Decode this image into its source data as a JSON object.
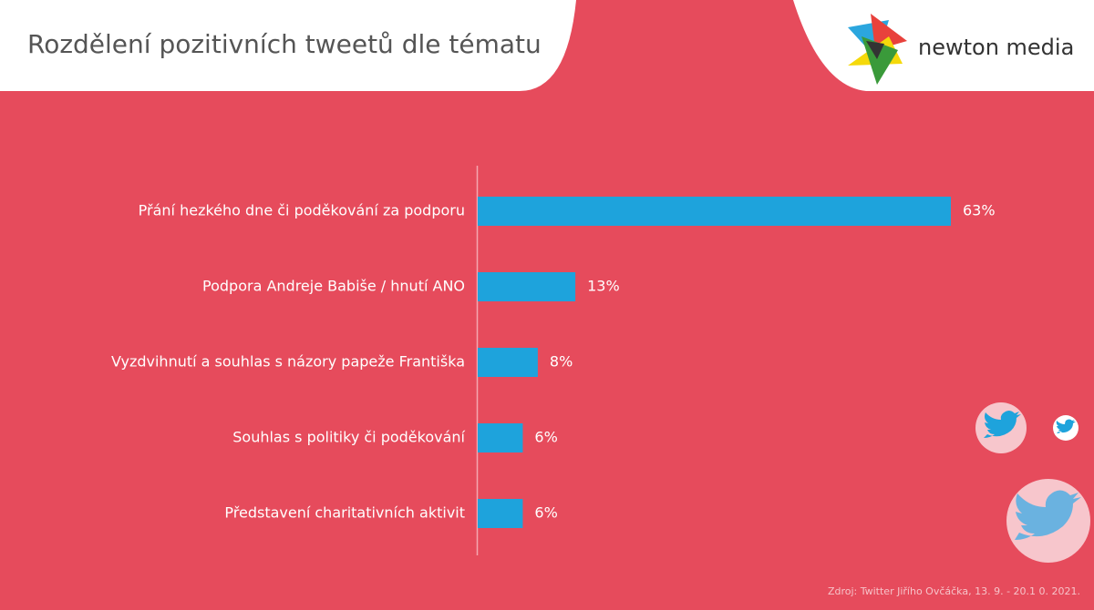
{
  "chart_data": {
    "type": "hbar",
    "title": "Rozdělení pozitivních tweetů dle tématu",
    "categories": [
      "Přání hezkého dne či poděkování za podporu",
      "Podpora Andreje Babiše / hnutí ANO",
      "Vyzdvihnutí a souhlas s názory papeže Františka",
      "Souhlas s politiky či poděkování",
      "Představení charitativních aktivit"
    ],
    "values": [
      63,
      13,
      8,
      6,
      6
    ],
    "value_labels": [
      "63%",
      "13%",
      "8%",
      "6%",
      "6%"
    ],
    "color": "#1ea3dc",
    "source": "Zdroj: Twitter Jiřího Ovčáčka, 13. 9. - 20.1 0. 2021."
  },
  "logo_text": "newton media"
}
